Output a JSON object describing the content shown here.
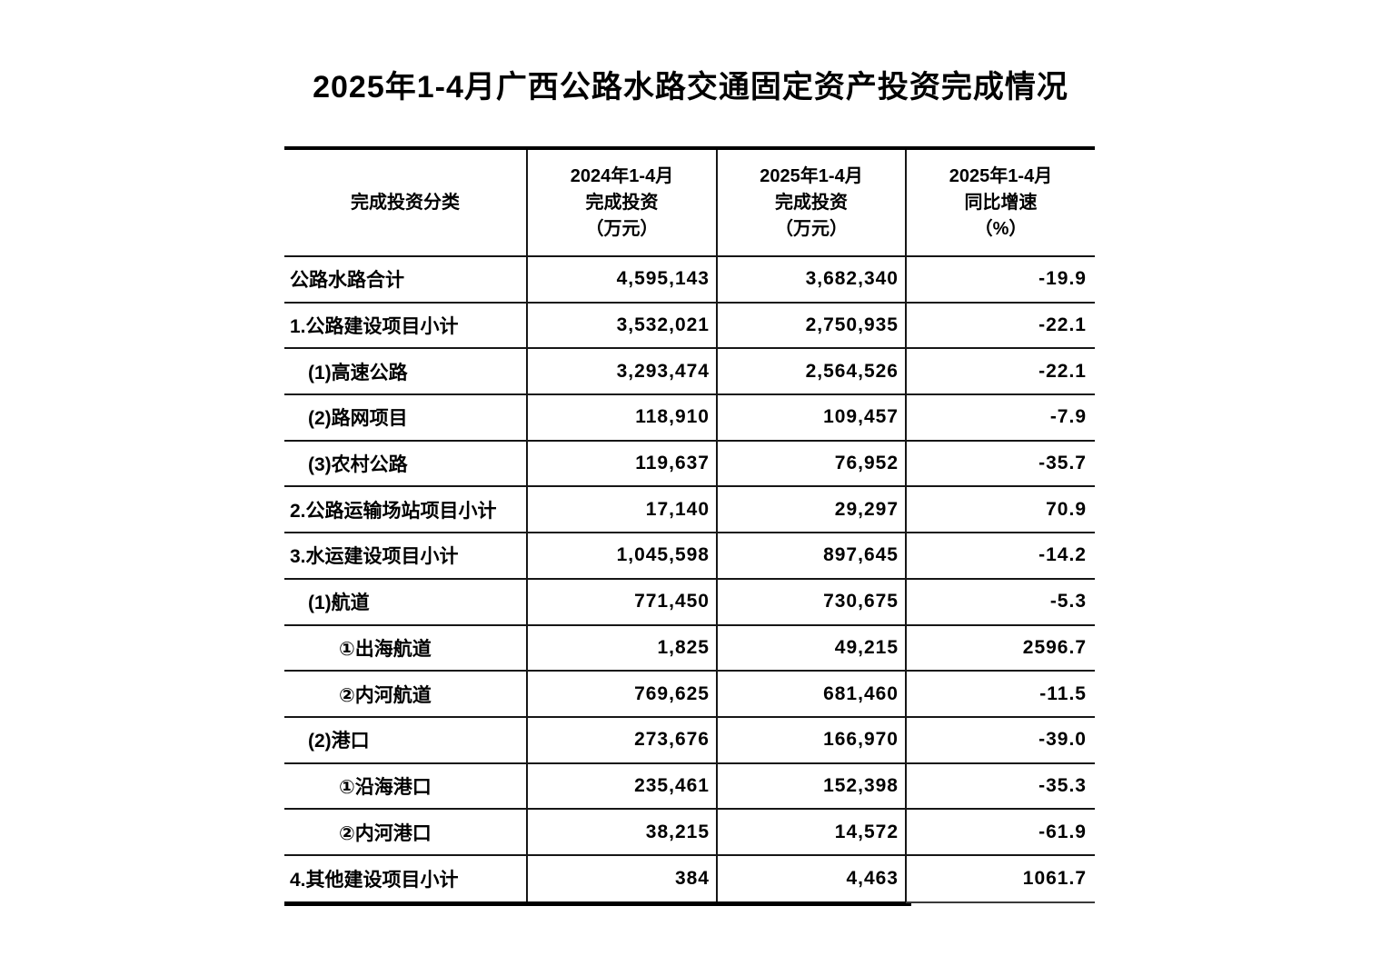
{
  "page": {
    "title": "2025年1-4月广西公路水路交通固定资产投资完成情况",
    "background_color": "#ffffff",
    "text_color": "#000000",
    "line_color": "#161616"
  },
  "table": {
    "columns": [
      {
        "label": "完成投资分类"
      },
      {
        "label": "2024年1-4月\n完成投资\n（万元）"
      },
      {
        "label": "2025年1-4月\n完成投资\n（万元）"
      },
      {
        "label": "2025年1-4月\n同比增速\n（%）"
      }
    ],
    "rows": [
      {
        "label": "公路水路合计",
        "indent": 0,
        "v2024": "4,595,143",
        "v2025": "3,682,340",
        "growth": "-19.9"
      },
      {
        "label": "1.公路建设项目小计",
        "indent": 0,
        "v2024": "3,532,021",
        "v2025": "2,750,935",
        "growth": "-22.1"
      },
      {
        "label": "(1)高速公路",
        "indent": 1,
        "v2024": "3,293,474",
        "v2025": "2,564,526",
        "growth": "-22.1"
      },
      {
        "label": "(2)路网项目",
        "indent": 1,
        "v2024": "118,910",
        "v2025": "109,457",
        "growth": "-7.9"
      },
      {
        "label": "(3)农村公路",
        "indent": 1,
        "v2024": "119,637",
        "v2025": "76,952",
        "growth": "-35.7"
      },
      {
        "label": "2.公路运输场站项目小计",
        "indent": 0,
        "v2024": "17,140",
        "v2025": "29,297",
        "growth": "70.9"
      },
      {
        "label": "3.水运建设项目小计",
        "indent": 0,
        "v2024": "1,045,598",
        "v2025": "897,645",
        "growth": "-14.2"
      },
      {
        "label": "(1)航道",
        "indent": 1,
        "v2024": "771,450",
        "v2025": "730,675",
        "growth": "-5.3"
      },
      {
        "label": "①出海航道",
        "indent": 2,
        "v2024": "1,825",
        "v2025": "49,215",
        "growth": "2596.7"
      },
      {
        "label": "②内河航道",
        "indent": 2,
        "v2024": "769,625",
        "v2025": "681,460",
        "growth": "-11.5"
      },
      {
        "label": "(2)港口",
        "indent": 1,
        "v2024": "273,676",
        "v2025": "166,970",
        "growth": "-39.0"
      },
      {
        "label": "①沿海港口",
        "indent": 2,
        "v2024": "235,461",
        "v2025": "152,398",
        "growth": "-35.3"
      },
      {
        "label": "②内河港口",
        "indent": 2,
        "v2024": "38,215",
        "v2025": "14,572",
        "growth": "-61.9"
      },
      {
        "label": "4.其他建设项目小计",
        "indent": 0,
        "v2024": "384",
        "v2025": "4,463",
        "growth": "1061.7"
      }
    ]
  }
}
